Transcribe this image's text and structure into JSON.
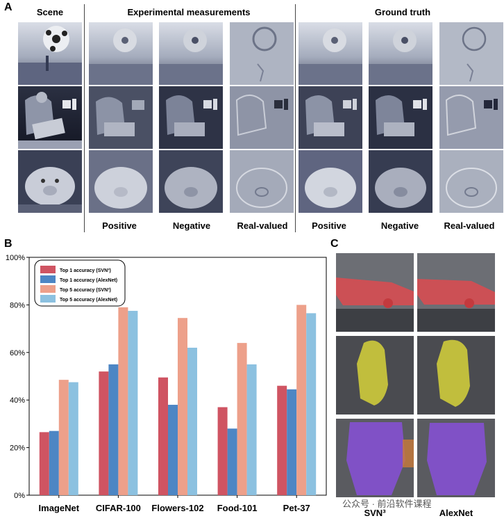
{
  "panels": {
    "a": "A",
    "b": "B",
    "c": "C"
  },
  "panel_a": {
    "headers": {
      "scene": "Scene",
      "experimental": "Experimental measurements",
      "ground_truth": "Ground truth"
    },
    "column_labels": [
      "Positive",
      "Negative",
      "Real-valued",
      "Positive",
      "Negative",
      "Real-valued"
    ],
    "rows": [
      "soccer-ball",
      "person-laptop",
      "piggy-bank"
    ]
  },
  "panel_c": {
    "column_labels": [
      "SVN³",
      "AlexNet"
    ],
    "rows": [
      {
        "name": "airplane",
        "overlay": "#e5484d"
      },
      {
        "name": "bird",
        "overlay": "#d6d23a"
      },
      {
        "name": "dog",
        "overlay": "#8a4fe0"
      }
    ]
  },
  "watermark": "公众号 · 前沿软件课程",
  "chart_data": {
    "type": "bar",
    "categories": [
      "ImageNet",
      "CIFAR-100",
      "Flowers-102",
      "Food-101",
      "Pet-37"
    ],
    "series": [
      {
        "name": "Top 1 accuracy (SVN³)",
        "color": "#cf5462",
        "values": [
          26.5,
          52,
          49.5,
          37,
          46
        ]
      },
      {
        "name": "Top 1 accuracy (AlexNet)",
        "color": "#4d86c4",
        "values": [
          27,
          55,
          38,
          28,
          44.5
        ]
      },
      {
        "name": "Top 5 accuracy (SVN³)",
        "color": "#eda08a",
        "values": [
          48.5,
          79,
          74.5,
          64,
          80
        ]
      },
      {
        "name": "Top 5 accuracy (AlexNet)",
        "color": "#8cc1e0",
        "values": [
          47.5,
          77.5,
          62,
          55,
          76.5
        ]
      }
    ],
    "ylim": [
      0,
      100
    ],
    "yticks": [
      "0%",
      "20%",
      "40%",
      "60%",
      "80%",
      "100%"
    ],
    "legend_position": "top-left"
  }
}
